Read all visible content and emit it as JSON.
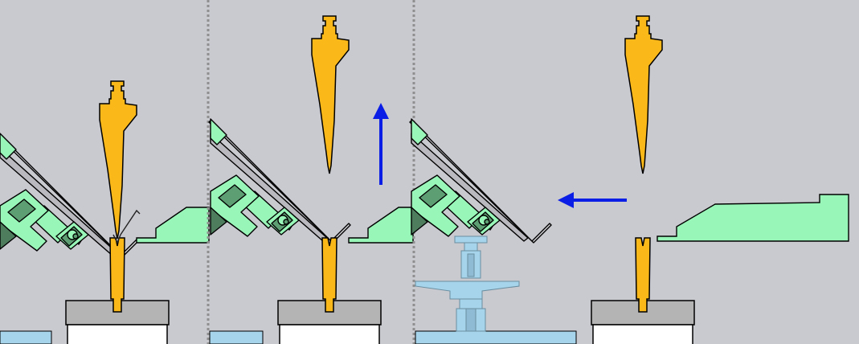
{
  "colors": {
    "background": "#c9c9d0",
    "punch": "#fbb819",
    "die": "#fbb819",
    "gripper": "#98f7b8",
    "gripper_shade": "#5d9e73",
    "die_base": "#b4b4b4",
    "machine_bed": "#ffffff",
    "floor_block": "#a6d4ea",
    "arrow": "#0a1ee6",
    "divider": "#8f8f8f",
    "sheet_outline": "#222222"
  },
  "panels": [
    {
      "id": "panel-1",
      "step": "bending",
      "arrow": "none"
    },
    {
      "id": "panel-2",
      "step": "punch-retract",
      "arrow": "up"
    },
    {
      "id": "panel-3",
      "step": "part-withdraw",
      "arrow": "left"
    }
  ],
  "icons": {
    "punch": "press-brake-punch-icon",
    "die": "v-die-icon",
    "robot": "robot-gripper-icon",
    "back_gauge": "back-gauge-icon",
    "arrow_up": "arrow-up-icon",
    "arrow_left": "arrow-left-icon"
  }
}
